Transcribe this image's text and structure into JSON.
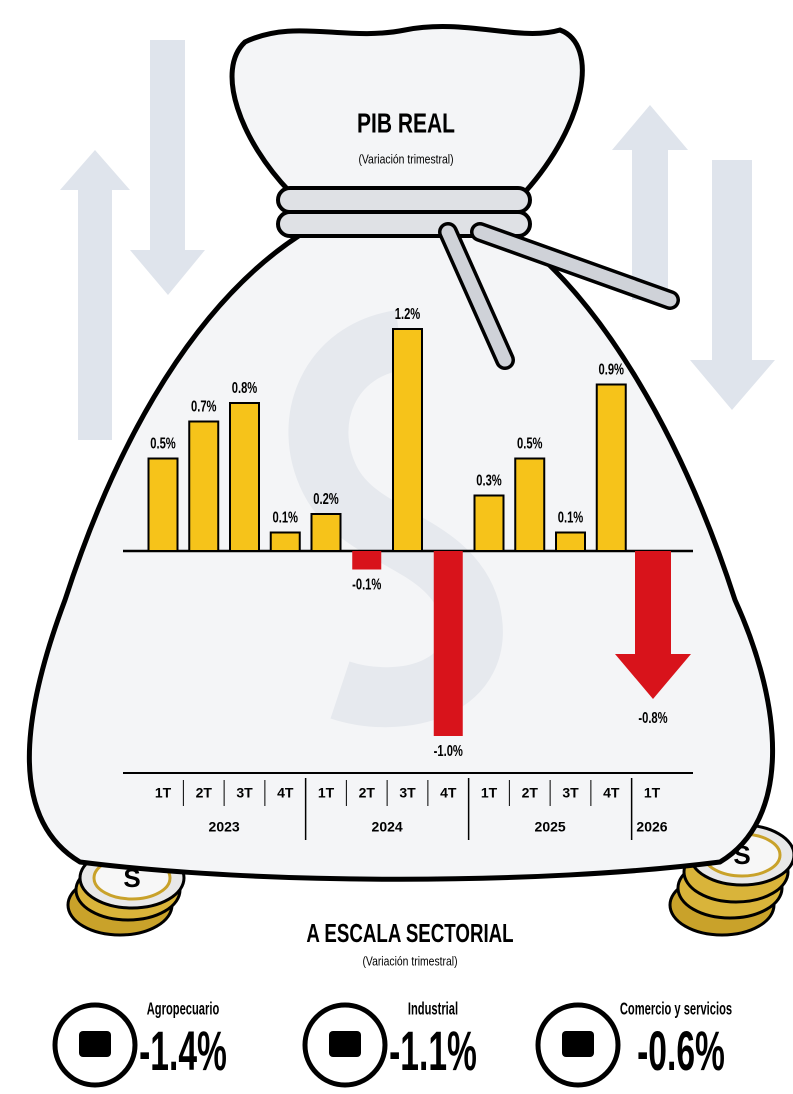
{
  "chart_data": {
    "type": "bar",
    "title": "PIB REAL",
    "subtitle": "(Variación trimestral)",
    "positive_color": "#f6c31a",
    "negative_color": "#d8131b",
    "groups": [
      {
        "label": "2023",
        "categories": [
          "1T",
          "2T",
          "3T",
          "4T"
        ],
        "values": [
          0.5,
          0.7,
          0.8,
          0.1
        ],
        "value_labels": [
          "0.5%",
          "0.7%",
          "0.8%",
          "0.1%"
        ]
      },
      {
        "label": "2024",
        "categories": [
          "1T",
          "2T",
          "3T",
          "4T"
        ],
        "values": [
          0.2,
          -0.1,
          1.2,
          -1.0
        ],
        "value_labels": [
          "0.2%",
          "-0.1%",
          "1.2%",
          "-1.0%"
        ]
      },
      {
        "label": "2025",
        "categories": [
          "1T",
          "2T",
          "3T",
          "4T"
        ],
        "values": [
          0.3,
          0.5,
          0.1,
          0.9
        ],
        "value_labels": [
          "0.3%",
          "0.5%",
          "0.1%",
          "0.9%"
        ]
      },
      {
        "label": "2026",
        "categories": [
          "1T"
        ],
        "values": [
          -0.8
        ],
        "value_labels": [
          "-0.8%"
        ]
      }
    ]
  },
  "sectoral": {
    "title": "A ESCALA SECTORIAL",
    "subtitle": "(Variación trimestral)",
    "sectors": [
      {
        "name": "Agropecuario",
        "value": "-1.4%"
      },
      {
        "name": "Industrial",
        "value": "-1.1%"
      },
      {
        "name": "Comercio y servicios",
        "value": "-0.6%"
      }
    ]
  }
}
